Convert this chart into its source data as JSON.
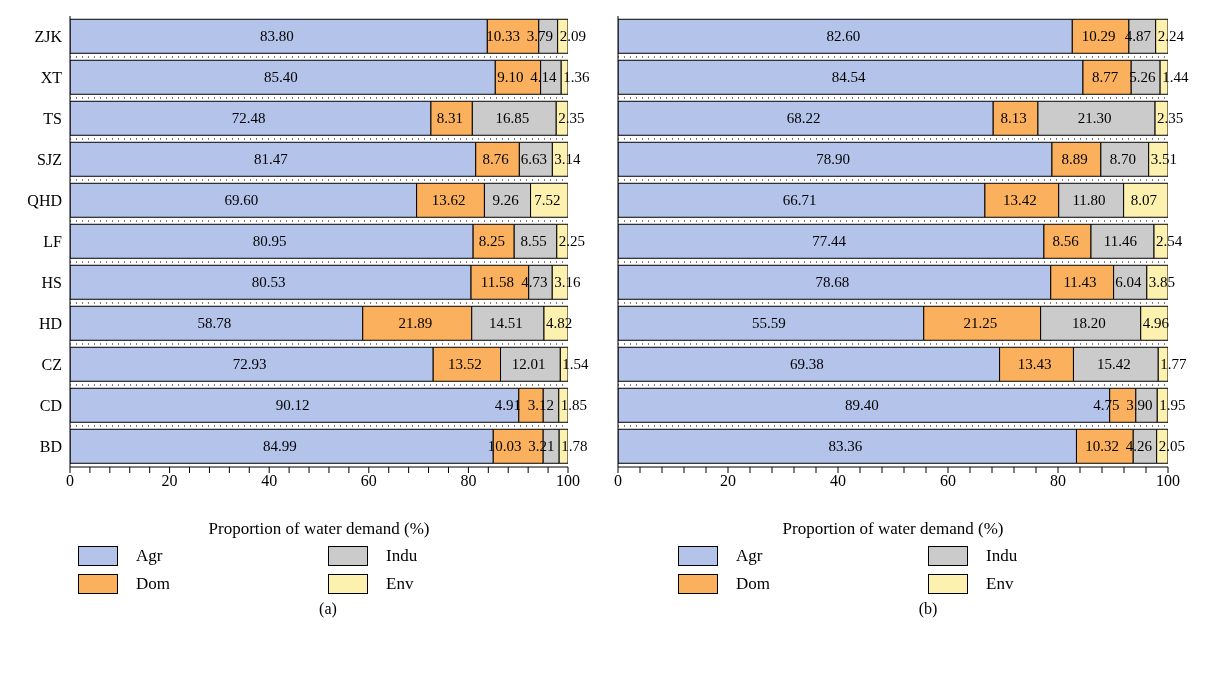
{
  "chart_data": [
    {
      "type": "bar",
      "title": "(a)",
      "orientation": "horizontal",
      "stacked": true,
      "xlabel": "Proportion of water demand (%)",
      "categories": [
        "ZJK",
        "XT",
        "TS",
        "SJZ",
        "QHD",
        "LF",
        "HS",
        "HD",
        "CZ",
        "CD",
        "BD"
      ],
      "xlim": [
        0,
        100
      ],
      "xticks": [
        0,
        {
          "value": 4,
          "label": null
        },
        {
          "value": 8,
          "label": null
        },
        {
          "value": 12,
          "label": null
        },
        {
          "value": 16,
          "label": null
        },
        20,
        {
          "value": 24,
          "label": null
        },
        {
          "value": 28,
          "label": null
        },
        {
          "value": 32,
          "label": null
        },
        {
          "value": 36,
          "label": null
        },
        40,
        {
          "value": 44,
          "label": null
        },
        {
          "value": 48,
          "label": null
        },
        {
          "value": 52,
          "label": null
        },
        {
          "value": 56,
          "label": null
        },
        60,
        {
          "value": 64,
          "label": null
        },
        {
          "value": 68,
          "label": null
        },
        {
          "value": 72,
          "label": null
        },
        {
          "value": 76,
          "label": null
        },
        80,
        {
          "value": 84,
          "label": null
        },
        {
          "value": 88,
          "label": null
        },
        {
          "value": 92,
          "label": null
        },
        {
          "value": 96,
          "label": null
        },
        100
      ],
      "grid": "y",
      "legend": "bottom",
      "series": [
        {
          "name": "Agr",
          "color": "#b4c3ea",
          "values": [
            83.8,
            85.4,
            72.48,
            81.47,
            69.6,
            80.95,
            80.53,
            58.78,
            72.93,
            90.12,
            84.99
          ],
          "value_labels": [
            "83.80",
            "85.40",
            "72.48",
            "81.47",
            "69.60",
            "80.95",
            "80.53",
            "58.78",
            "72.93",
            "90.12",
            "84.99"
          ]
        },
        {
          "name": "Dom",
          "color": "#fbb05e",
          "values": [
            10.33,
            9.1,
            8.31,
            8.76,
            13.62,
            8.25,
            11.58,
            21.89,
            13.52,
            4.91,
            10.03
          ],
          "value_labels": [
            "10.33",
            "9.10",
            "8.31",
            "8.76",
            "13.62",
            "8.25",
            "11.58",
            "21.89",
            "13.52",
            "4.91",
            "10.03"
          ]
        },
        {
          "name": "Indu",
          "color": "#cbcbcb",
          "values": [
            3.79,
            4.14,
            16.85,
            6.63,
            9.26,
            8.55,
            4.73,
            14.51,
            12.01,
            3.12,
            3.21
          ],
          "value_labels": [
            "3.79",
            "4.14",
            "16.85",
            "6.63",
            "9.26",
            "8.55",
            "4.73",
            "14.51",
            "12.01",
            "3.12",
            "3.21"
          ]
        },
        {
          "name": "Env",
          "color": "#fdf1b0",
          "values": [
            2.09,
            1.36,
            2.35,
            3.14,
            7.52,
            2.25,
            3.16,
            4.82,
            1.54,
            1.85,
            1.78
          ],
          "value_labels": [
            "2.09",
            "1.36",
            "2.35",
            "3.14",
            "7.52",
            "2.25",
            "3.16",
            "4.82",
            "1.54",
            "1.85",
            "1.78"
          ]
        }
      ]
    },
    {
      "type": "bar",
      "title": "(b)",
      "orientation": "horizontal",
      "stacked": true,
      "xlabel": "Proportion of water demand (%)",
      "categories": [
        null,
        null,
        null,
        null,
        null,
        null,
        null,
        null,
        null,
        null,
        null
      ],
      "xlim": [
        0,
        100
      ],
      "xticks": [
        0,
        {
          "value": 4,
          "label": null
        },
        {
          "value": 8,
          "label": null
        },
        {
          "value": 12,
          "label": null
        },
        {
          "value": 16,
          "label": null
        },
        20,
        {
          "value": 24,
          "label": null
        },
        {
          "value": 28,
          "label": null
        },
        {
          "value": 32,
          "label": null
        },
        {
          "value": 36,
          "label": null
        },
        40,
        {
          "value": 44,
          "label": null
        },
        {
          "value": 48,
          "label": null
        },
        {
          "value": 52,
          "label": null
        },
        {
          "value": 56,
          "label": null
        },
        60,
        {
          "value": 64,
          "label": null
        },
        {
          "value": 68,
          "label": null
        },
        {
          "value": 72,
          "label": null
        },
        {
          "value": 76,
          "label": null
        },
        80,
        {
          "value": 84,
          "label": null
        },
        {
          "value": 88,
          "label": null
        },
        {
          "value": 92,
          "label": null
        },
        {
          "value": 96,
          "label": null
        },
        100
      ],
      "grid": "y",
      "legend": "bottom",
      "series": [
        {
          "name": "Agr",
          "color": "#b4c3ea",
          "values": [
            82.6,
            84.54,
            68.22,
            78.9,
            66.71,
            77.44,
            78.68,
            55.59,
            69.38,
            89.4,
            83.36
          ],
          "value_labels": [
            "82.60",
            "84.54",
            "68.22",
            "78.90",
            "66.71",
            "77.44",
            "78.68",
            "55.59",
            "69.38",
            "89.40",
            "83.36"
          ]
        },
        {
          "name": "Dom",
          "color": "#fbb05e",
          "values": [
            10.29,
            8.77,
            8.13,
            8.89,
            13.42,
            8.56,
            11.43,
            21.25,
            13.43,
            4.75,
            10.32
          ],
          "value_labels": [
            "10.29",
            "8.77",
            "8.13",
            "8.89",
            "13.42",
            "8.56",
            "11.43",
            "21.25",
            "13.43",
            "4.75",
            "10.32"
          ]
        },
        {
          "name": "Indu",
          "color": "#cbcbcb",
          "values": [
            4.87,
            5.26,
            21.3,
            8.7,
            11.8,
            11.46,
            6.04,
            18.2,
            15.42,
            3.9,
            4.26
          ],
          "value_labels": [
            "4.87",
            "5.26",
            "21.30",
            "8.70",
            "11.80",
            "11.46",
            "6.04",
            "18.20",
            "15.42",
            "3.90",
            "4.26"
          ]
        },
        {
          "name": "Env",
          "color": "#fdf1b0",
          "values": [
            2.24,
            1.44,
            2.35,
            3.51,
            8.07,
            2.54,
            3.85,
            4.96,
            1.77,
            1.95,
            2.05
          ],
          "value_labels": [
            "2.24",
            "1.44",
            "2.35",
            "3.51",
            "8.07",
            "2.54",
            "3.85",
            "4.96",
            "1.77",
            "1.95",
            "2.05"
          ]
        }
      ]
    }
  ]
}
